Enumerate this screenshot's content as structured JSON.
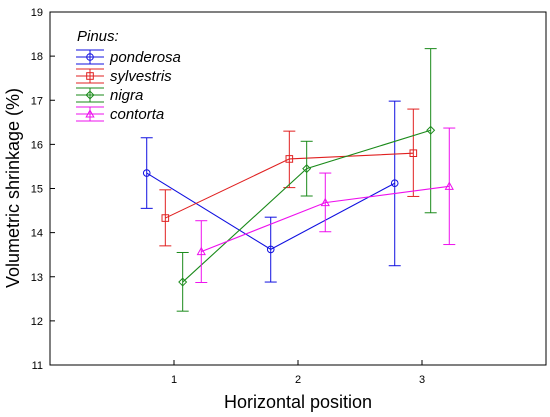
{
  "chart_data": {
    "type": "line",
    "xlabel": "Horizontal position",
    "ylabel": "Volumetric shrinkage (%)",
    "xlim": [
      0,
      4
    ],
    "ylim": [
      11,
      19
    ],
    "x_ticks": [
      1,
      2,
      3
    ],
    "y_ticks": [
      11,
      12,
      13,
      14,
      15,
      16,
      17,
      18,
      19
    ],
    "grid": false,
    "error_bars": true,
    "legend_title": "Pinus:",
    "legend_position": "top-left",
    "series": [
      {
        "name": "ponderosa",
        "color": "#1010e0",
        "marker": "circle",
        "x": [
          0.78,
          1.78,
          2.78
        ],
        "y": [
          15.35,
          13.62,
          15.12
        ],
        "lower": [
          14.55,
          12.88,
          13.25
        ],
        "upper": [
          16.15,
          14.35,
          16.98
        ]
      },
      {
        "name": "sylvestris",
        "color": "#e02020",
        "marker": "square",
        "x": [
          0.93,
          1.93,
          2.93
        ],
        "y": [
          14.33,
          15.67,
          15.8
        ],
        "lower": [
          13.7,
          15.02,
          14.82
        ],
        "upper": [
          14.97,
          16.3,
          16.8
        ]
      },
      {
        "name": "nigra",
        "color": "#1a8a1a",
        "marker": "diamond",
        "x": [
          1.07,
          2.07,
          3.07
        ],
        "y": [
          12.88,
          15.45,
          16.32
        ],
        "lower": [
          12.22,
          14.83,
          14.45
        ],
        "upper": [
          13.55,
          16.07,
          18.17
        ]
      },
      {
        "name": "contorta",
        "color": "#ee10ee",
        "marker": "triangle",
        "x": [
          1.22,
          2.22,
          3.22
        ],
        "y": [
          13.57,
          14.68,
          15.05
        ],
        "lower": [
          12.87,
          14.02,
          13.73
        ],
        "upper": [
          14.27,
          15.35,
          16.37
        ]
      }
    ]
  }
}
